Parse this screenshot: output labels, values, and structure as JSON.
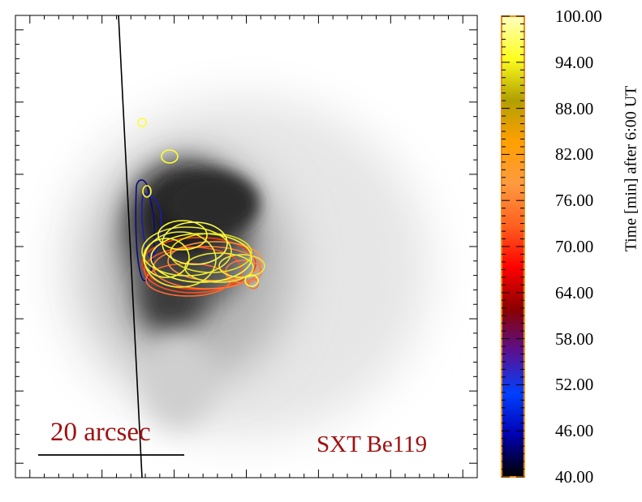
{
  "panel": {
    "scale_bar_label": "20 arcsec",
    "instrument_label": "SXT Be119",
    "label_color": "#a01010"
  },
  "colorbar": {
    "title": "Time [min] after  6:00 UT",
    "range": [
      40.0,
      100.0
    ],
    "tick_labels": [
      "100.00",
      "94.00",
      "88.00",
      "82.00",
      "76.00",
      "70.00",
      "64.00",
      "58.00",
      "52.00",
      "46.00",
      "40.00"
    ],
    "colormap": [
      "#000000",
      "#0000b0",
      "#0040ff",
      "#5a1090",
      "#8b0000",
      "#ff0000",
      "#ff6020",
      "#ff9a40",
      "#ffa000",
      "#b0a000",
      "#ffff20",
      "#ffffc0"
    ],
    "frame_color": "#f08c18"
  },
  "contours": {
    "colors_min": [
      "#000080",
      "#1a1ab0",
      "#ff3000",
      "#ff6a30",
      "#ff8a40",
      "#f0f030",
      "#ffff30"
    ]
  }
}
